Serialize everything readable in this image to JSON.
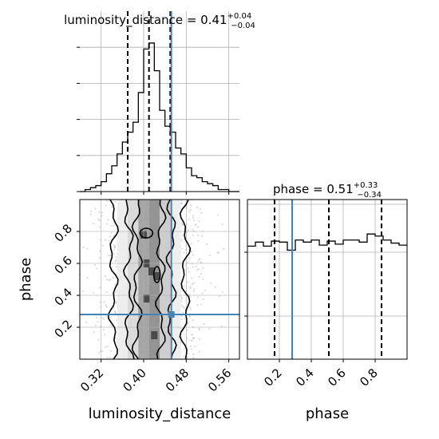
{
  "chart_data": {
    "type": "corner",
    "parameters": [
      "luminosity_distance",
      "phase"
    ],
    "truth_color": "#4682b4",
    "panels": [
      {
        "id": "luminosity_distance-hist",
        "type": "histogram",
        "param": "luminosity_distance",
        "title": {
          "label": "luminosity_distance = 0.41",
          "plus": "+0.04",
          "minus": "−0.04"
        },
        "xlim": [
          0.28,
          0.58
        ],
        "bin_edges": [
          0.28,
          0.29,
          0.3,
          0.31,
          0.32,
          0.33,
          0.34,
          0.35,
          0.36,
          0.37,
          0.38,
          0.39,
          0.4,
          0.41,
          0.42,
          0.43,
          0.44,
          0.45,
          0.46,
          0.47,
          0.48,
          0.49,
          0.5,
          0.51,
          0.52,
          0.53,
          0.54,
          0.55,
          0.56,
          0.57,
          0.58
        ],
        "counts": [
          0,
          1,
          2,
          3,
          5,
          9,
          13,
          19,
          25,
          30,
          35,
          50,
          72,
          75,
          61,
          41,
          33,
          30,
          22,
          19,
          12,
          8,
          7,
          5,
          4,
          3,
          1,
          1,
          0,
          0
        ],
        "quantiles": [
          0.37,
          0.41,
          0.45
        ],
        "truth": 0.452
      },
      {
        "id": "phase-hist",
        "type": "histogram",
        "param": "phase",
        "title": {
          "label": "phase = 0.51",
          "plus": "+0.33",
          "minus": "−0.34"
        },
        "xlim": [
          0.0,
          1.0
        ],
        "bin_edges": [
          0.0,
          0.05,
          0.1,
          0.15,
          0.2,
          0.25,
          0.3,
          0.35,
          0.4,
          0.45,
          0.5,
          0.55,
          0.6,
          0.65,
          0.7,
          0.75,
          0.8,
          0.85,
          0.9,
          0.95,
          1.0
        ],
        "counts": [
          112,
          116,
          112,
          117,
          116,
          108,
          118,
          116,
          118,
          113,
          117,
          114,
          118,
          118,
          116,
          124,
          122,
          118,
          115,
          113
        ],
        "quantiles": [
          0.17,
          0.51,
          0.84
        ],
        "truth": 0.28
      },
      {
        "id": "joint-2d",
        "type": "contour_2d",
        "x": "luminosity_distance",
        "y": "phase",
        "xlim": [
          0.28,
          0.58
        ],
        "ylim": [
          0.0,
          1.0
        ],
        "truth": [
          0.452,
          0.28
        ]
      }
    ],
    "axes": {
      "luminosity_distance": {
        "label": "luminosity_distance",
        "ticks": [
          "0.32",
          "0.40",
          "0.48",
          "0.56"
        ]
      },
      "phase_x": {
        "label": "phase",
        "ticks": [
          "0.2",
          "0.4",
          "0.6",
          "0.8"
        ]
      },
      "phase_y": {
        "label": "phase",
        "ticks": [
          "0.2",
          "0.4",
          "0.6",
          "0.8"
        ]
      }
    }
  }
}
